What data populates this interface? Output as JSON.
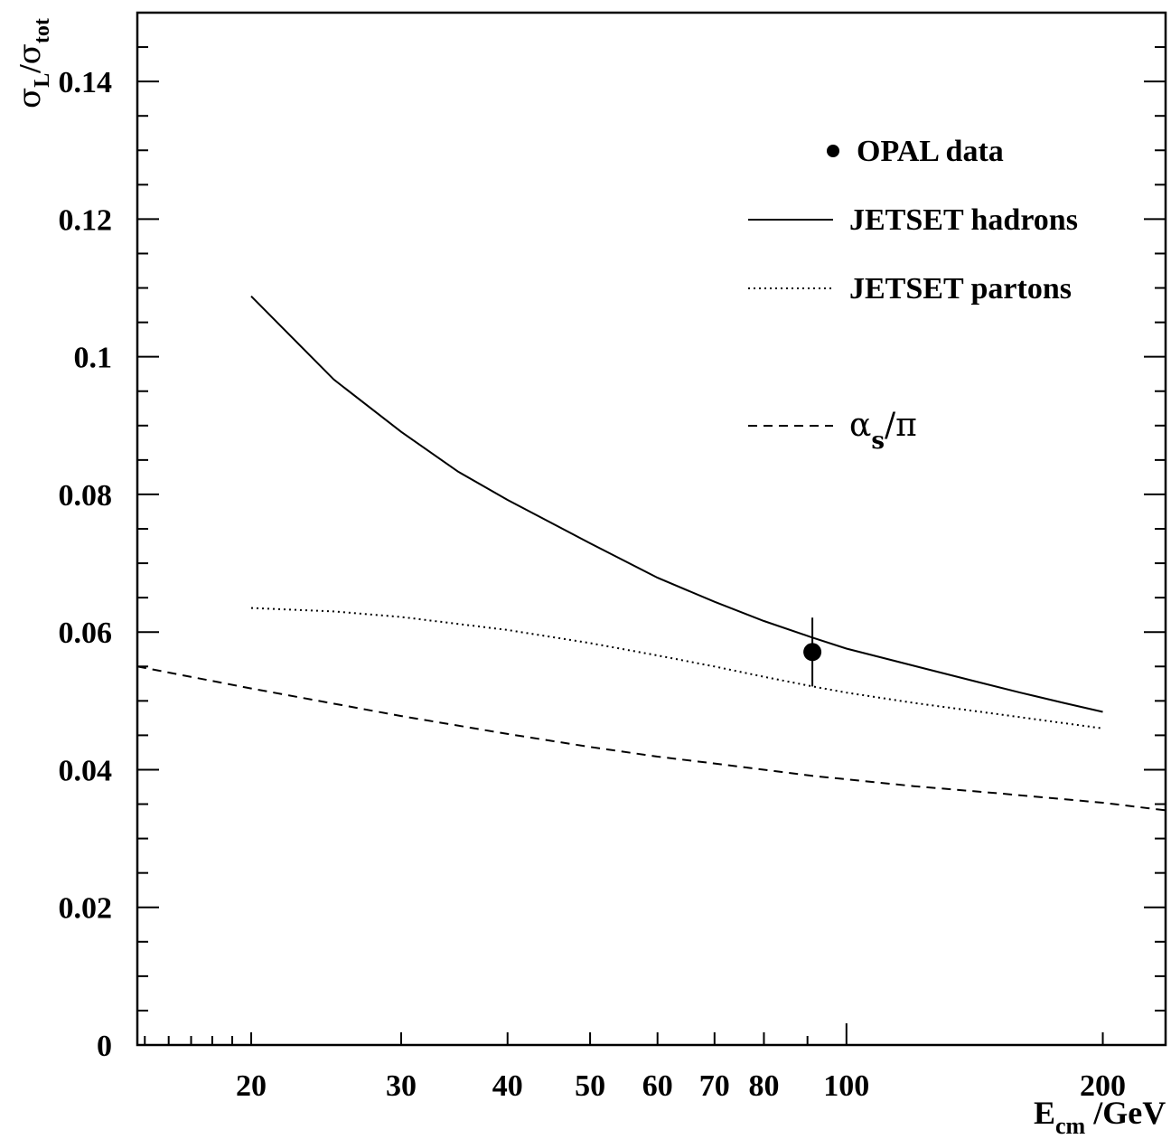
{
  "chart_data": {
    "type": "line",
    "title": "",
    "xlabel": {
      "main": "E",
      "sub": "cm",
      "unit": " /GeV"
    },
    "ylabel": {
      "num": "σ",
      "num_sub": "L",
      "slash": "/",
      "den": "σ",
      "den_sub": "tot"
    },
    "x_scale": "log",
    "xlim": [
      14.7,
      237
    ],
    "ylim": [
      0,
      0.15
    ],
    "x_ticks": [
      20,
      30,
      40,
      50,
      60,
      70,
      80,
      100,
      200
    ],
    "x_tick_labels": [
      "20",
      "30",
      "40",
      "50",
      "60",
      "70",
      "80",
      "100",
      "200"
    ],
    "y_ticks": [
      0,
      0.02,
      0.04,
      0.06,
      0.08,
      0.1,
      0.12,
      0.14
    ],
    "y_tick_labels": [
      "0",
      "0.02",
      "0.04",
      "0.06",
      "0.08",
      "0.1",
      "0.12",
      "0.14"
    ],
    "grid": false,
    "legend_position": "top-right",
    "series": [
      {
        "name": "JETSET hadrons",
        "style": "solid",
        "x": [
          20,
          25,
          30,
          35,
          40,
          50,
          60,
          70,
          80,
          91.2,
          100,
          120,
          140,
          160,
          180,
          200
        ],
        "y": [
          0.1088,
          0.0967,
          0.0891,
          0.0833,
          0.0792,
          0.0729,
          0.0679,
          0.0644,
          0.0616,
          0.0592,
          0.0576,
          0.0551,
          0.053,
          0.0512,
          0.0497,
          0.0484
        ]
      },
      {
        "name": "JETSET partons",
        "style": "dotted",
        "x": [
          20,
          25,
          30,
          40,
          50,
          60,
          70,
          80,
          91.2,
          100,
          120,
          150,
          200
        ],
        "y": [
          0.0635,
          0.063,
          0.0622,
          0.0603,
          0.0584,
          0.0566,
          0.055,
          0.0535,
          0.0521,
          0.0512,
          0.0497,
          0.0481,
          0.046
        ]
      },
      {
        "name": "α_s/π",
        "style": "dashed",
        "x": [
          14.7,
          20,
          30,
          40,
          50,
          60,
          70,
          80,
          91.2,
          100,
          120,
          150,
          200,
          237
        ],
        "y": [
          0.055,
          0.0518,
          0.0478,
          0.0452,
          0.0433,
          0.0419,
          0.0409,
          0.04,
          0.0391,
          0.0386,
          0.0376,
          0.0366,
          0.0352,
          0.0341
        ]
      }
    ],
    "points": [
      {
        "name": "OPAL data",
        "x": 91.2,
        "y": 0.0571,
        "err": 0.005
      }
    ],
    "legend": {
      "opal": "OPAL data",
      "hadrons": "JETSET hadrons",
      "partons": "JETSET partons",
      "alpha_main": "α",
      "alpha_sub": "s",
      "alpha_tail": "/π"
    }
  }
}
